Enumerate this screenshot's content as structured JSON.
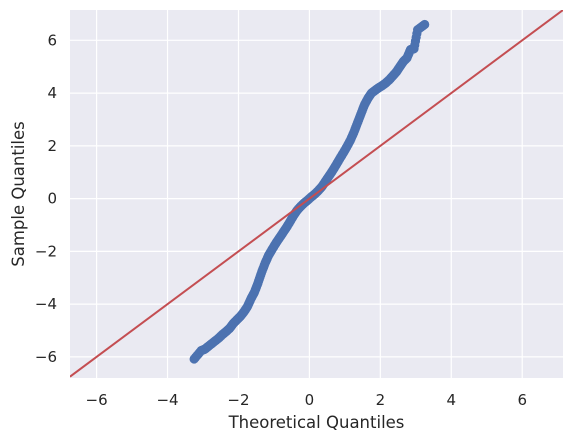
{
  "chart_data": {
    "type": "scatter",
    "title": "",
    "xlabel": "Theoretical Quantiles",
    "ylabel": "Sample Quantiles",
    "xlim": [
      -6.75,
      7.15
    ],
    "ylim": [
      -6.8,
      7.15
    ],
    "xticks": [
      -6,
      -4,
      -2,
      0,
      2,
      4,
      6
    ],
    "yticks": [
      -6,
      -4,
      -2,
      0,
      2,
      4,
      6
    ],
    "xtick_labels": [
      "−6",
      "−4",
      "−2",
      "0",
      "2",
      "4",
      "6"
    ],
    "ytick_labels": [
      "−6",
      "−4",
      "−2",
      "0",
      "2",
      "4",
      "6"
    ],
    "grid": true,
    "background": "#eaeaf2",
    "series": [
      {
        "kind": "scatter",
        "color": "#4c72b0",
        "points": [
          [
            -3.25,
            -6.08
          ],
          [
            -3.05,
            -5.76
          ],
          [
            -2.95,
            -5.71
          ],
          [
            -2.85,
            -5.6
          ],
          [
            -2.7,
            -5.44
          ],
          [
            -2.55,
            -5.28
          ],
          [
            -2.45,
            -5.15
          ],
          [
            -2.35,
            -5.04
          ],
          [
            -2.25,
            -4.92
          ],
          [
            -2.15,
            -4.74
          ],
          [
            -2.05,
            -4.6
          ],
          [
            -1.95,
            -4.47
          ],
          [
            -1.85,
            -4.3
          ],
          [
            -1.75,
            -4.1
          ],
          [
            -1.65,
            -3.8
          ],
          [
            -1.55,
            -3.55
          ],
          [
            -1.45,
            -3.2
          ],
          [
            -1.35,
            -2.8
          ],
          [
            -1.25,
            -2.45
          ],
          [
            -1.15,
            -2.15
          ],
          [
            -1.05,
            -1.92
          ],
          [
            -0.95,
            -1.7
          ],
          [
            -0.85,
            -1.5
          ],
          [
            -0.75,
            -1.3
          ],
          [
            -0.65,
            -1.1
          ],
          [
            -0.55,
            -0.88
          ],
          [
            -0.45,
            -0.65
          ],
          [
            -0.35,
            -0.45
          ],
          [
            -0.25,
            -0.3
          ],
          [
            -0.15,
            -0.17
          ],
          [
            -0.05,
            -0.06
          ],
          [
            0.05,
            0.06
          ],
          [
            0.15,
            0.17
          ],
          [
            0.25,
            0.3
          ],
          [
            0.35,
            0.45
          ],
          [
            0.45,
            0.65
          ],
          [
            0.55,
            0.85
          ],
          [
            0.65,
            1.05
          ],
          [
            0.75,
            1.27
          ],
          [
            0.85,
            1.5
          ],
          [
            0.95,
            1.72
          ],
          [
            1.05,
            1.95
          ],
          [
            1.15,
            2.2
          ],
          [
            1.25,
            2.5
          ],
          [
            1.35,
            2.85
          ],
          [
            1.45,
            3.2
          ],
          [
            1.55,
            3.55
          ],
          [
            1.65,
            3.8
          ],
          [
            1.75,
            4.0
          ],
          [
            1.85,
            4.1
          ],
          [
            1.95,
            4.2
          ],
          [
            2.05,
            4.28
          ],
          [
            2.15,
            4.38
          ],
          [
            2.25,
            4.5
          ],
          [
            2.35,
            4.65
          ],
          [
            2.45,
            4.8
          ],
          [
            2.55,
            5.0
          ],
          [
            2.65,
            5.2
          ],
          [
            2.75,
            5.33
          ],
          [
            2.85,
            5.65
          ],
          [
            2.95,
            5.68
          ],
          [
            3.05,
            6.4
          ],
          [
            3.25,
            6.6
          ]
        ]
      },
      {
        "kind": "line",
        "color": "#c44e52",
        "points": [
          [
            -6.75,
            -6.75
          ],
          [
            7.15,
            7.15
          ]
        ]
      }
    ]
  }
}
